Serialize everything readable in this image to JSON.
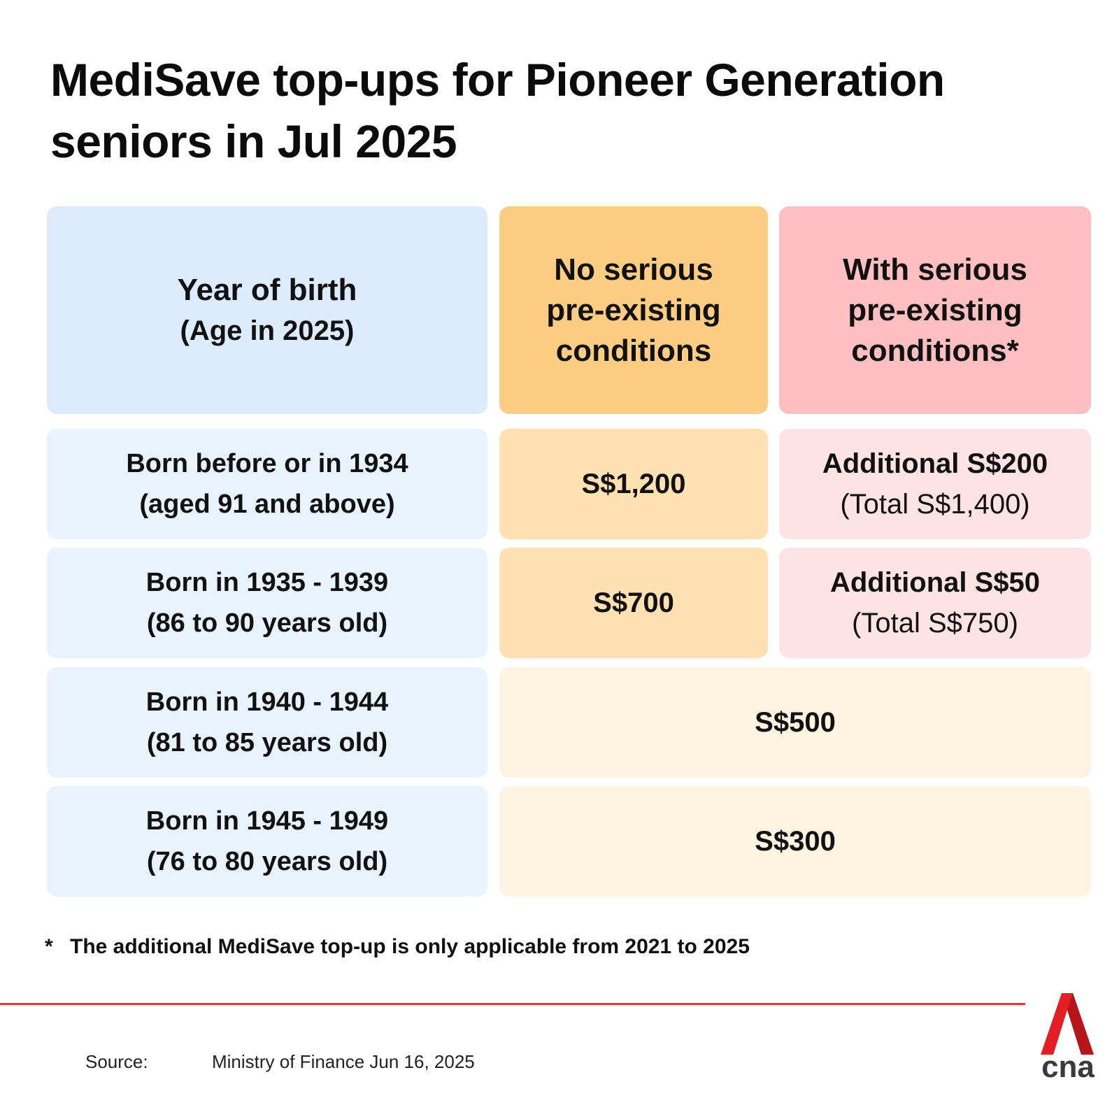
{
  "title": "MediSave top-ups for Pioneer Generation seniors in Jul 2025",
  "table": {
    "headers": {
      "birth": "Year of birth",
      "birth_sub": "(Age in 2025)",
      "no_condition": "No serious pre-existing conditions",
      "with_condition": "With serious pre-existing conditions*"
    },
    "rows": [
      {
        "label": "Born before or in 1934",
        "sublabel": "(aged 91 and above)",
        "no_condition": "S$1,200",
        "with_condition": "Additional S$200",
        "with_total": "(Total S$1,400)"
      },
      {
        "label": "Born in 1935 - 1939",
        "sublabel": "(86 to 90 years old)",
        "no_condition": "S$700",
        "with_condition": "Additional S$50",
        "with_total": "(Total S$750)"
      },
      {
        "label": "Born in 1940 - 1944",
        "sublabel": "(81 to 85 years old)",
        "combined": "S$500"
      },
      {
        "label": "Born in 1945 - 1949",
        "sublabel": "(76 to 80 years old)",
        "combined": "S$300"
      }
    ]
  },
  "footnote": {
    "marker": "*",
    "text": "The additional MediSave top-up is only applicable from 2021 to 2025"
  },
  "source": {
    "label": "Source:",
    "text": "Ministry of Finance Jun 16, 2025"
  },
  "logo": {
    "text": "cna",
    "icon": "cna-logo-icon",
    "accent_color": "#e31e24",
    "text_color": "#3a3a3a"
  }
}
